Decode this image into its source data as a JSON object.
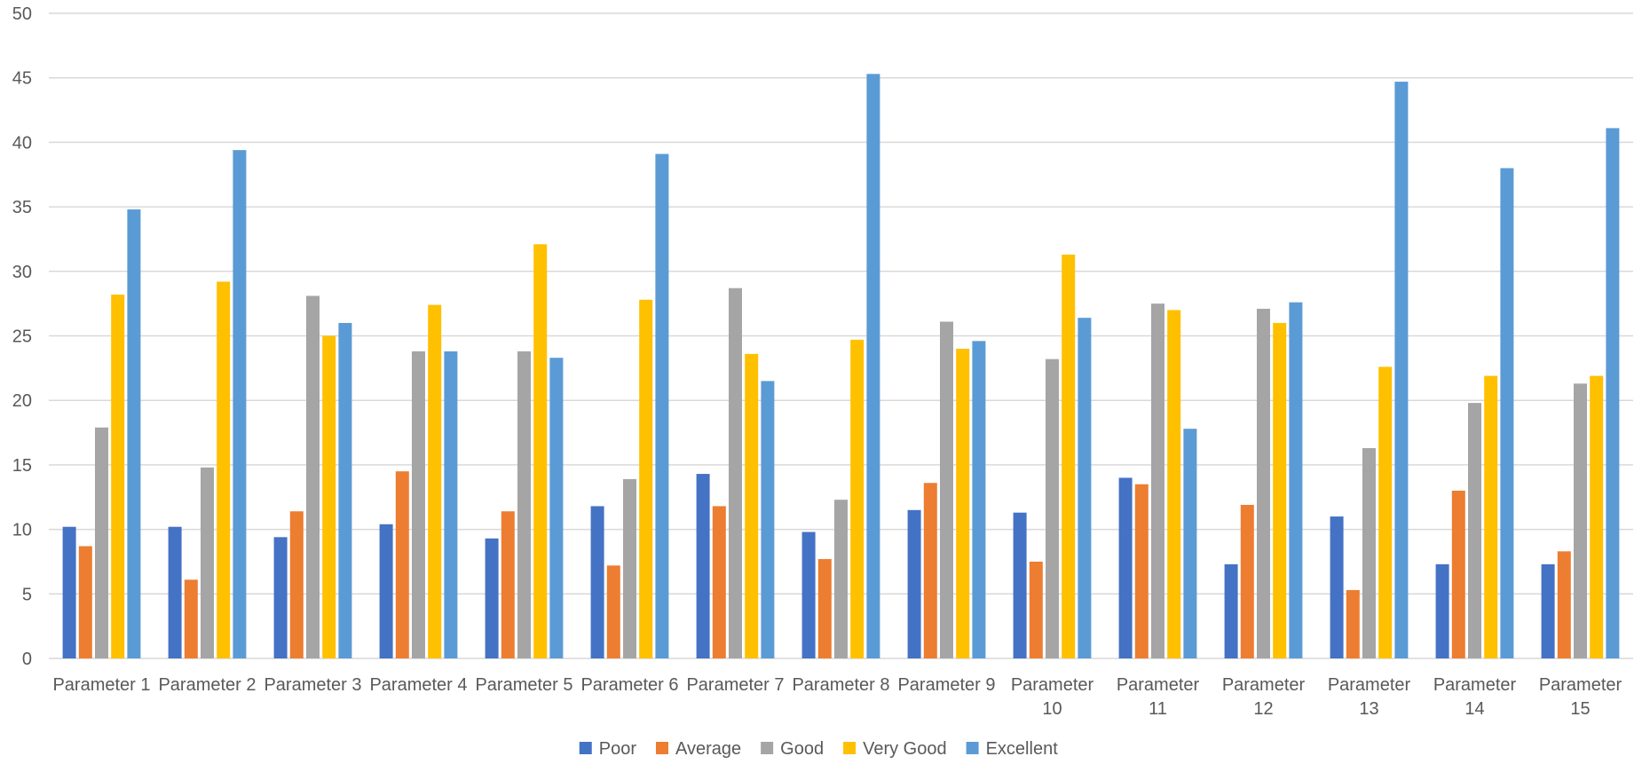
{
  "chart_data": {
    "type": "bar",
    "title": "",
    "xlabel": "",
    "ylabel": "",
    "ylim": [
      0,
      50
    ],
    "y_ticks": [
      0,
      5,
      10,
      15,
      20,
      25,
      30,
      35,
      40,
      45,
      50
    ],
    "grid": true,
    "legend_position": "bottom",
    "categories": [
      "Parameter 1",
      "Parameter 2",
      "Parameter 3",
      "Parameter 4",
      "Parameter 5",
      "Parameter 6",
      "Parameter 7",
      "Parameter 8",
      "Parameter 9",
      "Parameter 10",
      "Parameter 11",
      "Parameter 12",
      "Parameter 13",
      "Parameter 14",
      "Parameter 15"
    ],
    "series": [
      {
        "name": "Poor",
        "color": "#4472C4",
        "values": [
          10.2,
          10.2,
          9.4,
          10.4,
          9.3,
          11.8,
          14.3,
          9.8,
          11.5,
          11.3,
          14.0,
          7.3,
          11.0,
          7.3,
          7.3
        ]
      },
      {
        "name": "Average",
        "color": "#ED7D31",
        "values": [
          8.7,
          6.1,
          11.4,
          14.5,
          11.4,
          7.2,
          11.8,
          7.7,
          13.6,
          7.5,
          13.5,
          11.9,
          5.3,
          13.0,
          8.3
        ]
      },
      {
        "name": "Good",
        "color": "#A5A5A5",
        "values": [
          17.9,
          14.8,
          28.1,
          23.8,
          23.8,
          13.9,
          28.7,
          12.3,
          26.1,
          23.2,
          27.5,
          27.1,
          16.3,
          19.8,
          21.3
        ]
      },
      {
        "name": "Very Good",
        "color": "#FFC000",
        "values": [
          28.2,
          29.2,
          25.0,
          27.4,
          32.1,
          27.8,
          23.6,
          24.7,
          24.0,
          31.3,
          27.0,
          26.0,
          22.6,
          21.9,
          21.9
        ]
      },
      {
        "name": "Excellent",
        "color": "#5B9BD5",
        "values": [
          34.8,
          39.4,
          26.0,
          23.8,
          23.3,
          39.1,
          21.5,
          45.3,
          24.6,
          26.4,
          17.8,
          27.6,
          44.7,
          38.0,
          41.1
        ]
      }
    ]
  },
  "colors": {
    "grid": "#D9D9D9",
    "axis_text": "#595959"
  }
}
